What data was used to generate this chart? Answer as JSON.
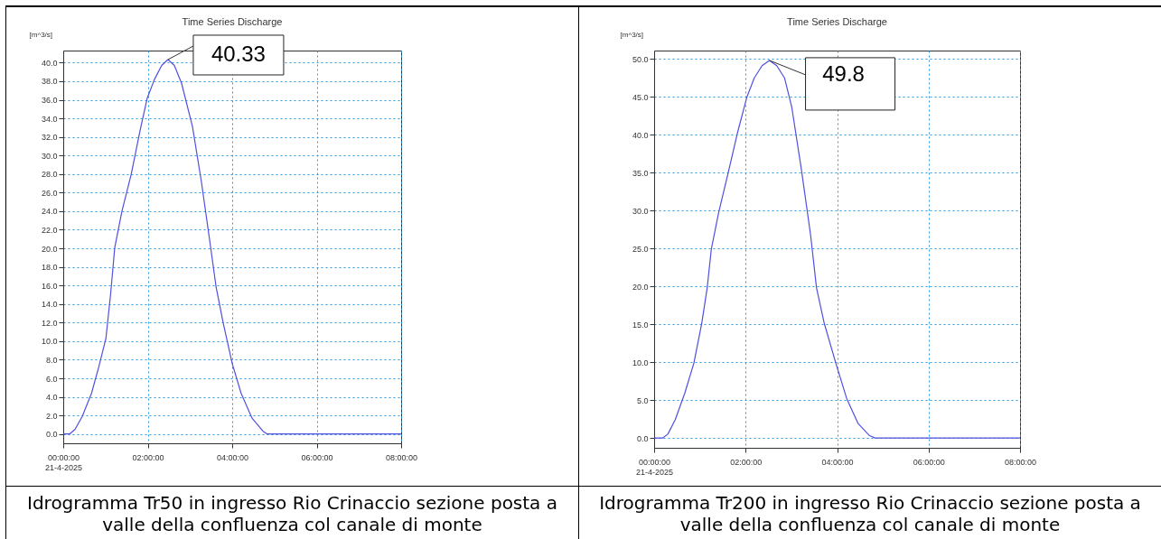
{
  "chart_data": [
    {
      "type": "line",
      "title": "Time Series Discharge",
      "ylabel": "[m^3/s]",
      "series": [
        {
          "color": "#5050e0",
          "x": [
            0,
            0.15,
            0.28,
            0.45,
            0.67,
            0.84,
            1.01,
            1.12,
            1.22,
            1.39,
            1.61,
            1.82,
            1.99,
            2.16,
            2.33,
            2.48,
            2.63,
            2.8,
            3.06,
            3.27,
            3.49,
            3.62,
            3.79,
            4.0,
            4.21,
            4.47,
            4.73,
            4.83,
            8
          ],
          "values": [
            0,
            0,
            0.5,
            1.9,
            4.4,
            7.2,
            10.3,
            15.0,
            20.1,
            24.0,
            28.0,
            32.7,
            36.2,
            38.2,
            39.7,
            40.33,
            39.7,
            37.8,
            33.1,
            27.2,
            20.1,
            15.8,
            11.9,
            7.6,
            4.4,
            1.7,
            0.3,
            0,
            0
          ]
        }
      ],
      "xlim": [
        0,
        8
      ],
      "xticks": [
        {
          "value": 0,
          "label": "00:00:00\n21-4-2025"
        },
        {
          "value": 2,
          "label": "02:00:00"
        },
        {
          "value": 4,
          "label": "04:00:00"
        },
        {
          "value": 6,
          "label": "06:00:00"
        },
        {
          "value": 8,
          "label": "08:00:00"
        }
      ],
      "ylim": [
        -1.0,
        41.3
      ],
      "yticks": [
        {
          "value": 0,
          "label": "0.0"
        },
        {
          "value": 2,
          "label": "2.0"
        },
        {
          "value": 4,
          "label": "4.0"
        },
        {
          "value": 6,
          "label": "6.0"
        },
        {
          "value": 8,
          "label": "8.0"
        },
        {
          "value": 10,
          "label": "10.0"
        },
        {
          "value": 12,
          "label": "12.0"
        },
        {
          "value": 14,
          "label": "14.0"
        },
        {
          "value": 16,
          "label": "16.0"
        },
        {
          "value": 18,
          "label": "18.0"
        },
        {
          "value": 20,
          "label": "20.0"
        },
        {
          "value": 22,
          "label": "22.0"
        },
        {
          "value": 24,
          "label": "24.0"
        },
        {
          "value": 26,
          "label": "26.0"
        },
        {
          "value": 28,
          "label": "28.0"
        },
        {
          "value": 30,
          "label": "30.0"
        },
        {
          "value": 32,
          "label": "32.0"
        },
        {
          "value": 34,
          "label": "34.0"
        },
        {
          "value": 36,
          "label": "36.0"
        },
        {
          "value": 38,
          "label": "38.0"
        },
        {
          "value": 40,
          "label": "40.0"
        }
      ],
      "grid": true,
      "annotations": [
        {
          "text": "40.33",
          "x": 2.48,
          "y": 40.33
        },
        "Idrogramma Tr50 in ingresso Rio Crinaccio sezione posta a valle della confluenza col canale di monte"
      ]
    },
    {
      "type": "line",
      "title": "Time Series Discharge",
      "ylabel": "[m^3/s]",
      "series": [
        {
          "color": "#5050e0",
          "x": [
            0,
            0.19,
            0.3,
            0.46,
            0.67,
            0.87,
            1.04,
            1.16,
            1.25,
            1.41,
            1.62,
            1.82,
            2.03,
            2.19,
            2.36,
            2.52,
            2.68,
            2.85,
            3.01,
            3.22,
            3.42,
            3.55,
            3.72,
            3.97,
            4.21,
            4.46,
            4.71,
            4.83,
            8
          ],
          "values": [
            0,
            0,
            0.5,
            2.4,
            5.9,
            9.9,
            15.1,
            19.8,
            24.9,
            29.7,
            35.0,
            40.2,
            45.0,
            47.5,
            49.1,
            49.8,
            49.1,
            47.5,
            43.6,
            35.4,
            26.8,
            19.8,
            15.1,
            9.9,
            5.2,
            1.9,
            0.3,
            0,
            0
          ]
        }
      ],
      "xlim": [
        0,
        8
      ],
      "xticks": [
        {
          "value": 0,
          "label": "00:00:00\n21-4-2025"
        },
        {
          "value": 2,
          "label": "02:00:00"
        },
        {
          "value": 4,
          "label": "04:00:00"
        },
        {
          "value": 6,
          "label": "06:00:00"
        },
        {
          "value": 8,
          "label": "08:00:00"
        }
      ],
      "ylim": [
        -1.3,
        51.1
      ],
      "yticks": [
        {
          "value": 0,
          "label": "0.0"
        },
        {
          "value": 5,
          "label": "5.0"
        },
        {
          "value": 10,
          "label": "10.0"
        },
        {
          "value": 15,
          "label": "15.0"
        },
        {
          "value": 20,
          "label": "20.0"
        },
        {
          "value": 25,
          "label": "25.0"
        },
        {
          "value": 30,
          "label": "30.0"
        },
        {
          "value": 35,
          "label": "35.0"
        },
        {
          "value": 40,
          "label": "40.0"
        },
        {
          "value": 45,
          "label": "45.0"
        },
        {
          "value": 50,
          "label": "50.0"
        }
      ],
      "grid": true,
      "annotations": [
        {
          "text": "49.8",
          "x": 2.52,
          "y": 49.8
        },
        "Idrogramma Tr200 in ingresso Rio Crinaccio sezione posta a valle della confluenza col canale di monte"
      ]
    }
  ]
}
